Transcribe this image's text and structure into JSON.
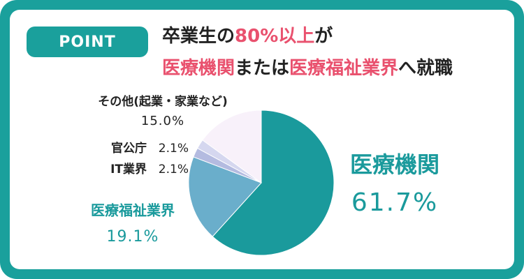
{
  "badge": "POINT",
  "headline": {
    "line1": [
      "卒業生の",
      "80%以上",
      "が"
    ],
    "line2": [
      "医療機関",
      "または",
      "医療福祉業界",
      "へ就職"
    ]
  },
  "chart_data": {
    "type": "pie",
    "categories": [
      "医療機関",
      "医療福祉業界",
      "IT業界",
      "官公庁",
      "その他(起業・家業など)"
    ],
    "values": [
      61.7,
      19.1,
      2.1,
      2.1,
      15.0
    ],
    "value_labels": [
      "61.7%",
      "19.1%",
      "2.1%",
      "2.1%",
      "15.0%"
    ],
    "colors": [
      "#1a9a9c",
      "#6aaecb",
      "#b4bbe0",
      "#d5d7ef",
      "#f8f1fa"
    ]
  }
}
